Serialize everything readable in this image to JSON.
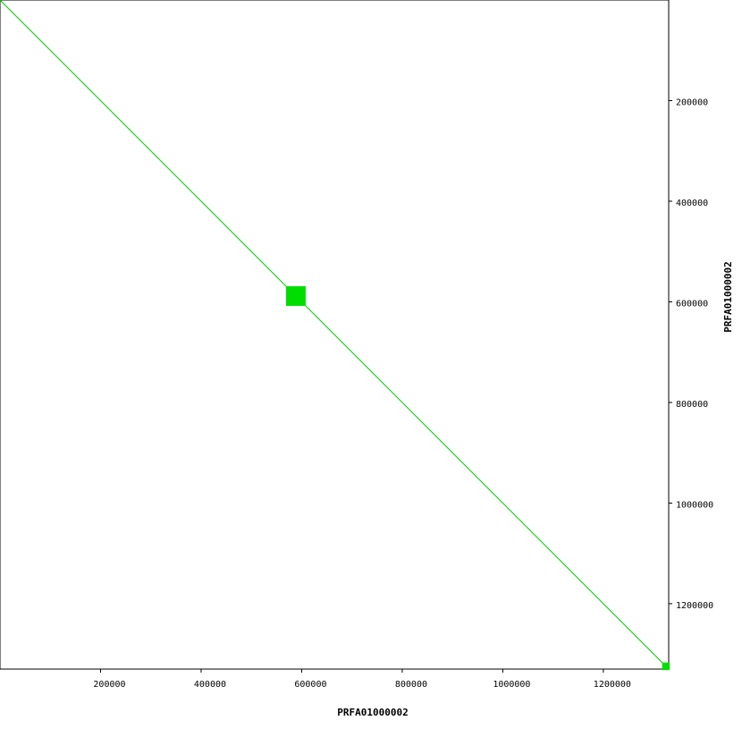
{
  "chart_data": {
    "type": "dotplot",
    "x_label": "PRFA01000002",
    "y_label": "PRFA01000002",
    "xlim": [
      0,
      1330000
    ],
    "ylim": [
      0,
      1330000
    ],
    "xticks": [
      200000,
      400000,
      600000,
      800000,
      1000000,
      1200000
    ],
    "yticks": [
      200000,
      400000,
      600000,
      800000,
      1000000,
      1200000
    ],
    "series": [
      {
        "color": "#00cc00",
        "x": [
          0,
          1330000
        ],
        "values": [
          0,
          1330000
        ]
      }
    ],
    "blocks": [
      {
        "color": "#00dd00",
        "x": [
          569000,
          608000
        ],
        "y": [
          569000,
          608000
        ]
      },
      {
        "color": "#00dd00",
        "x": [
          1317000,
          1332000
        ],
        "y": [
          1317000,
          1332000
        ]
      }
    ]
  }
}
